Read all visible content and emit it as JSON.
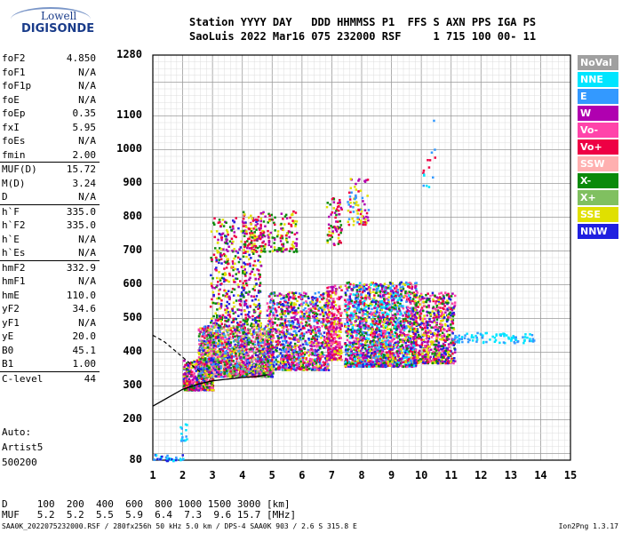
{
  "logo": {
    "line1": "Lowell",
    "line2": "DIGISONDE"
  },
  "header": {
    "line1": "Station YYYY DAY   DDD HHMMSS P1  FFS S AXN PPS IGA PS",
    "line2": "SaoLuis 2022 Mar16 075 232000 RSF     1 715 100 00- 11"
  },
  "params": [
    {
      "name": "foF2",
      "value": "4.850"
    },
    {
      "name": "foF1",
      "value": "N/A"
    },
    {
      "name": "foF1p",
      "value": "N/A"
    },
    {
      "name": "foE",
      "value": "N/A"
    },
    {
      "name": "foEp",
      "value": "0.35"
    },
    {
      "name": "fxI",
      "value": "5.95"
    },
    {
      "name": "foEs",
      "value": "N/A"
    },
    {
      "name": "fmin",
      "value": "2.00"
    },
    {
      "name": "MUF(D)",
      "value": "15.72"
    },
    {
      "name": "M(D)",
      "value": "3.24"
    },
    {
      "name": "D",
      "value": "N/A"
    },
    {
      "name": "h`F",
      "value": "335.0"
    },
    {
      "name": "h`F2",
      "value": "335.0"
    },
    {
      "name": "h`E",
      "value": "N/A"
    },
    {
      "name": "h`Es",
      "value": "N/A"
    },
    {
      "name": "hmF2",
      "value": "332.9"
    },
    {
      "name": "hmF1",
      "value": "N/A"
    },
    {
      "name": "hmE",
      "value": "110.0"
    },
    {
      "name": "yF2",
      "value": "34.6"
    },
    {
      "name": "yF1",
      "value": "N/A"
    },
    {
      "name": "yE",
      "value": "20.0"
    },
    {
      "name": "B0",
      "value": "45.1"
    },
    {
      "name": "B1",
      "value": "1.00"
    },
    {
      "name": "C-level",
      "value": "44"
    }
  ],
  "auto": {
    "line1": "Auto:",
    "line2": "Artist5",
    "line3": "500200"
  },
  "dmuf": {
    "d_row": "D     100  200  400  600  800 1000 1500 3000 [km]",
    "muf_row": "MUF   5.2  5.2  5.5  5.9  6.4  7.3  9.6 15.7 [MHz]"
  },
  "footer": {
    "left": "SAA0K_2022075232000.RSF / 280fx256h 50 kHz 5.0 km / DPS-4 SAA0K 903 / 2.6 S 315.8 E",
    "right": "Ion2Png 1.3.17"
  },
  "legend": [
    {
      "label": "NoVal",
      "color": "#a0a0a0"
    },
    {
      "label": "NNE",
      "color": "#00e5ff"
    },
    {
      "label": "E",
      "color": "#3399ff"
    },
    {
      "label": "W",
      "color": "#b000b0"
    },
    {
      "label": "Vo-",
      "color": "#ff44aa"
    },
    {
      "label": "Vo+",
      "color": "#ee0044"
    },
    {
      "label": "SSW",
      "color": "#ffb0b0"
    },
    {
      "label": "X-",
      "color": "#0a8a0a"
    },
    {
      "label": "X+",
      "color": "#80c060"
    },
    {
      "label": "SSE",
      "color": "#e0e000"
    },
    {
      "label": "NNW",
      "color": "#2020e0"
    }
  ],
  "chart_data": {
    "type": "scatter",
    "x_ticks": [
      "1",
      "2",
      "3",
      "4",
      "5",
      "6",
      "7",
      "8",
      "9",
      "10",
      "11",
      "12",
      "13",
      "14",
      "15"
    ],
    "y_ticks": [
      "80",
      "200",
      "300",
      "400",
      "500",
      "600",
      "700",
      "800",
      "900",
      "1000",
      "1100",
      "1280"
    ],
    "xlim": [
      1,
      15
    ],
    "ylim": [
      80,
      1280
    ],
    "grid": true,
    "trace": {
      "x": [
        1.0,
        1.5,
        2.0,
        2.5,
        3.0,
        3.5,
        4.0,
        4.5,
        4.85
      ],
      "y": [
        240,
        265,
        290,
        305,
        315,
        320,
        325,
        328,
        333
      ]
    },
    "dashed": {
      "x": [
        1.0,
        1.4,
        1.8,
        2.2,
        2.6
      ],
      "y": [
        450,
        430,
        400,
        370,
        340
      ]
    },
    "clusters": [
      {
        "fx": [
          1.0,
          2.0
        ],
        "hy": [
          80,
          100
        ],
        "n": 35,
        "colors": [
          "#00e5ff",
          "#3399ff",
          "#2020e0"
        ]
      },
      {
        "fx": [
          1.9,
          2.15
        ],
        "hy": [
          140,
          200
        ],
        "n": 15,
        "colors": [
          "#00e5ff",
          "#3399ff"
        ]
      },
      {
        "fx": [
          2.0,
          3.0
        ],
        "hy": [
          290,
          380
        ],
        "n": 420,
        "colors": [
          "#ee0044",
          "#b000b0",
          "#2020e0",
          "#ff44aa",
          "#e0e000",
          "#0a8a0a"
        ]
      },
      {
        "fx": [
          2.5,
          5.0
        ],
        "hy": [
          330,
          480
        ],
        "n": 1700,
        "colors": [
          "#ee0044",
          "#b000b0",
          "#ff44aa",
          "#e0e000",
          "#0a8a0a",
          "#2020e0",
          "#3399ff",
          "#80c060",
          "#ffb0b0"
        ]
      },
      {
        "fx": [
          2.9,
          4.6
        ],
        "hy": [
          480,
          800
        ],
        "n": 500,
        "colors": [
          "#ee0044",
          "#b000b0",
          "#2020e0",
          "#e0e000",
          "#0a8a0a"
        ]
      },
      {
        "fx": [
          4.0,
          5.8
        ],
        "hy": [
          700,
          820
        ],
        "n": 220,
        "colors": [
          "#e0e000",
          "#ee0044",
          "#b000b0",
          "#0a8a0a"
        ]
      },
      {
        "fx": [
          4.8,
          6.9
        ],
        "hy": [
          350,
          580
        ],
        "n": 1100,
        "colors": [
          "#ee0044",
          "#b000b0",
          "#ff44aa",
          "#e0e000",
          "#0a8a0a",
          "#2020e0",
          "#3399ff"
        ]
      },
      {
        "fx": [
          6.8,
          7.3
        ],
        "hy": [
          380,
          600
        ],
        "n": 300,
        "colors": [
          "#ee0044",
          "#b000b0",
          "#ff44aa",
          "#e0e000"
        ]
      },
      {
        "fx": [
          6.8,
          7.3
        ],
        "hy": [
          720,
          860
        ],
        "n": 70,
        "colors": [
          "#e0e000",
          "#b000b0",
          "#ee0044",
          "#0a8a0a"
        ]
      },
      {
        "fx": [
          7.5,
          8.2
        ],
        "hy": [
          780,
          920
        ],
        "n": 80,
        "colors": [
          "#e0e000",
          "#b000b0",
          "#ee0044",
          "#3399ff"
        ]
      },
      {
        "fx": [
          7.4,
          9.8
        ],
        "hy": [
          360,
          610
        ],
        "n": 1800,
        "colors": [
          "#ee0044",
          "#b000b0",
          "#ff44aa",
          "#3399ff",
          "#2020e0",
          "#e0e000",
          "#0a8a0a",
          "#00e5ff"
        ]
      },
      {
        "fx": [
          9.7,
          11.1
        ],
        "hy": [
          370,
          580
        ],
        "n": 700,
        "colors": [
          "#ee0044",
          "#b000b0",
          "#ff44aa",
          "#0a8a0a",
          "#e0e000",
          "#2020e0"
        ]
      },
      {
        "fx": [
          10.0,
          10.5
        ],
        "hy": [
          880,
          1090
        ],
        "n": 15,
        "colors": [
          "#00e5ff",
          "#3399ff",
          "#ee0044"
        ]
      },
      {
        "fx": [
          11.0,
          13.8
        ],
        "hy": [
          430,
          460
        ],
        "n": 90,
        "colors": [
          "#00e5ff",
          "#3399ff"
        ]
      }
    ]
  }
}
